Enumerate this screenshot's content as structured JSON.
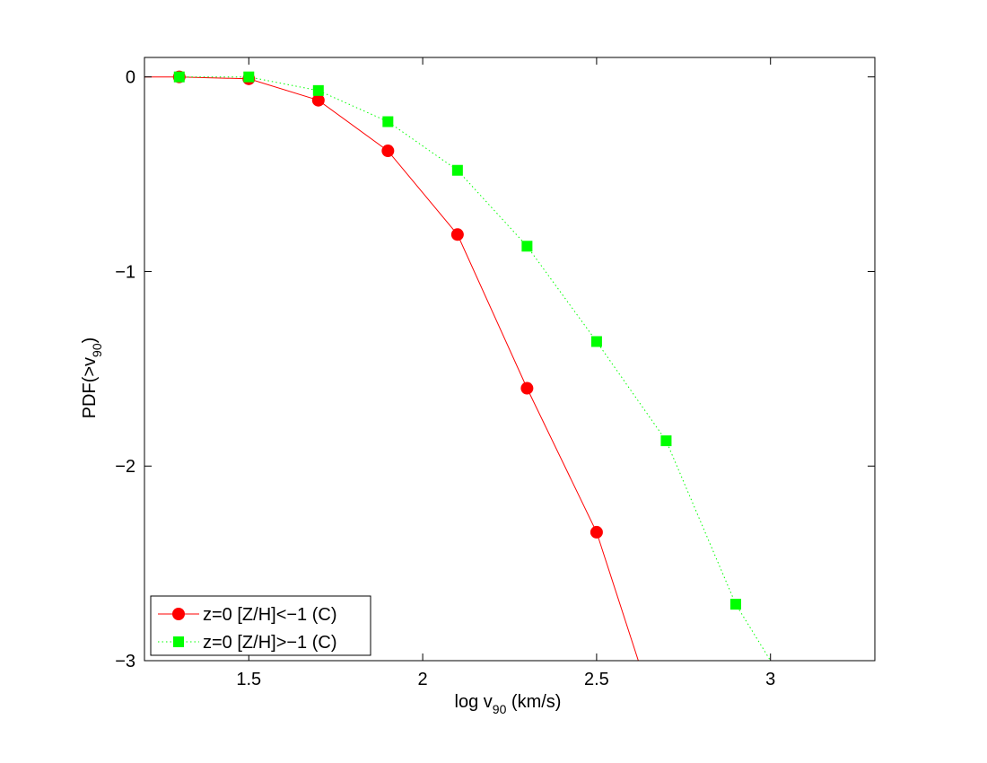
{
  "chart_data": {
    "type": "line",
    "title": "",
    "xlabel": {
      "prefix": "log v",
      "sub": "90",
      "suffix": " (km/s)"
    },
    "ylabel": {
      "prefix": "PDF(>v",
      "sub": "90",
      "suffix": ")"
    },
    "xlim": [
      1.2,
      3.3
    ],
    "ylim": [
      -3,
      0.1
    ],
    "xticks": [
      1.5,
      2,
      2.5,
      3
    ],
    "xtick_labels": [
      "1.5",
      "2",
      "2.5",
      "3"
    ],
    "yticks": [
      0,
      -1,
      -2,
      -3
    ],
    "ytick_labels": [
      "0",
      "−1",
      "−2",
      "−3"
    ],
    "grid": false,
    "legend_position": "bottom-left",
    "series": [
      {
        "name": "z=0 [Z/H]<−1 (C)",
        "color": "#ff0000",
        "line_style": "solid",
        "marker": "circle",
        "line_x": [
          1.2,
          1.3,
          1.5,
          1.7,
          1.9,
          2.1,
          2.3,
          2.5,
          2.62
        ],
        "line_y": [
          0,
          0,
          -0.01,
          -0.12,
          -0.38,
          -0.81,
          -1.6,
          -2.34,
          -3.0
        ],
        "x": [
          1.3,
          1.5,
          1.7,
          1.9,
          2.1,
          2.3,
          2.5
        ],
        "y": [
          0,
          -0.01,
          -0.12,
          -0.38,
          -0.81,
          -1.6,
          -2.34
        ]
      },
      {
        "name": "z=0 [Z/H]>−1 (C)",
        "color": "#00ff00",
        "line_style": "dotted",
        "marker": "square",
        "line_x": [
          1.3,
          1.5,
          1.7,
          1.9,
          2.1,
          2.3,
          2.5,
          2.7,
          2.9,
          3.0
        ],
        "line_y": [
          0,
          0,
          -0.07,
          -0.23,
          -0.48,
          -0.87,
          -1.36,
          -1.87,
          -2.71,
          -3.0
        ],
        "x": [
          1.3,
          1.5,
          1.7,
          1.9,
          2.1,
          2.3,
          2.5,
          2.7,
          2.9
        ],
        "y": [
          0,
          0,
          -0.07,
          -0.23,
          -0.48,
          -0.87,
          -1.36,
          -1.87,
          -2.71
        ]
      }
    ]
  }
}
